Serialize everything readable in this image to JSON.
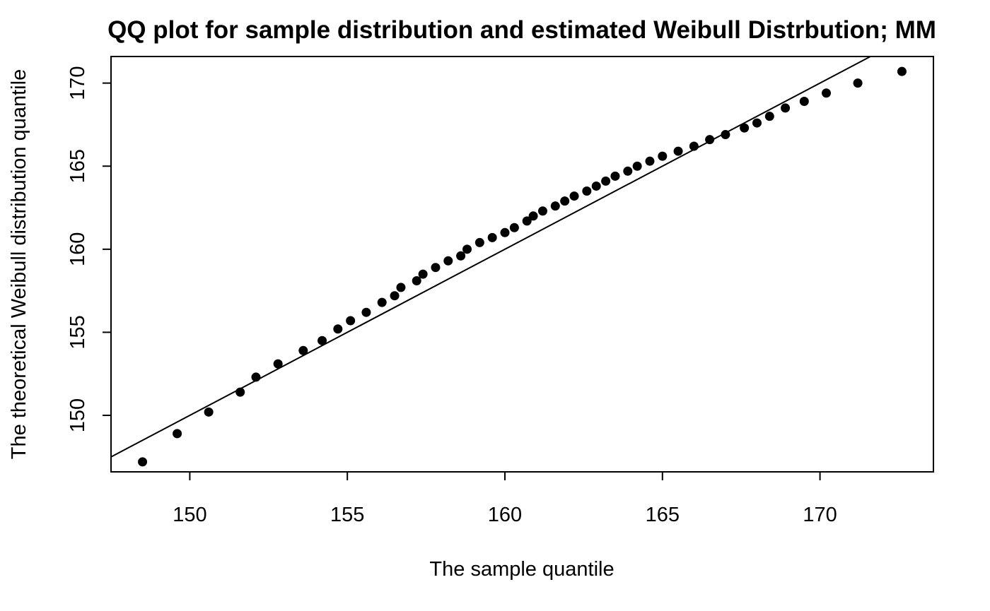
{
  "chart_data": {
    "type": "scatter",
    "title": "QQ plot for sample distribution and estimated Weibull Distrbution; MM",
    "xlabel": "The sample quantile",
    "ylabel": "The theoretical Weibull distribution quantile",
    "xlim": [
      147.5,
      173.6
    ],
    "ylim": [
      146.6,
      171.6
    ],
    "x_ticks": [
      150,
      155,
      160,
      165,
      170
    ],
    "y_ticks": [
      150,
      155,
      160,
      165,
      170
    ],
    "grid": false,
    "legend": "none",
    "reference_line": {
      "slope": 1.0,
      "intercept": 0.0,
      "color": "#000000"
    },
    "point_color": "#000000",
    "points": [
      [
        148.5,
        147.2
      ],
      [
        149.6,
        148.9
      ],
      [
        150.6,
        150.2
      ],
      [
        151.6,
        151.4
      ],
      [
        152.1,
        152.3
      ],
      [
        152.8,
        153.1
      ],
      [
        153.6,
        153.9
      ],
      [
        154.2,
        154.5
      ],
      [
        154.7,
        155.2
      ],
      [
        155.1,
        155.7
      ],
      [
        155.6,
        156.2
      ],
      [
        156.1,
        156.8
      ],
      [
        156.5,
        157.2
      ],
      [
        156.7,
        157.7
      ],
      [
        157.2,
        158.1
      ],
      [
        157.4,
        158.5
      ],
      [
        157.8,
        158.9
      ],
      [
        158.2,
        159.3
      ],
      [
        158.6,
        159.6
      ],
      [
        158.8,
        160.0
      ],
      [
        159.2,
        160.4
      ],
      [
        159.6,
        160.7
      ],
      [
        160.0,
        161.0
      ],
      [
        160.3,
        161.3
      ],
      [
        160.7,
        161.7
      ],
      [
        160.9,
        162.0
      ],
      [
        161.2,
        162.3
      ],
      [
        161.6,
        162.6
      ],
      [
        161.9,
        162.9
      ],
      [
        162.2,
        163.2
      ],
      [
        162.6,
        163.5
      ],
      [
        162.9,
        163.8
      ],
      [
        163.2,
        164.1
      ],
      [
        163.5,
        164.4
      ],
      [
        163.9,
        164.7
      ],
      [
        164.2,
        165.0
      ],
      [
        164.6,
        165.3
      ],
      [
        165.0,
        165.6
      ],
      [
        165.5,
        165.9
      ],
      [
        166.0,
        166.2
      ],
      [
        166.5,
        166.6
      ],
      [
        167.0,
        166.9
      ],
      [
        167.6,
        167.3
      ],
      [
        168.0,
        167.6
      ],
      [
        168.4,
        168.0
      ],
      [
        168.9,
        168.5
      ],
      [
        169.5,
        168.9
      ],
      [
        170.2,
        169.4
      ],
      [
        171.2,
        170.0
      ],
      [
        172.6,
        170.7
      ]
    ]
  }
}
